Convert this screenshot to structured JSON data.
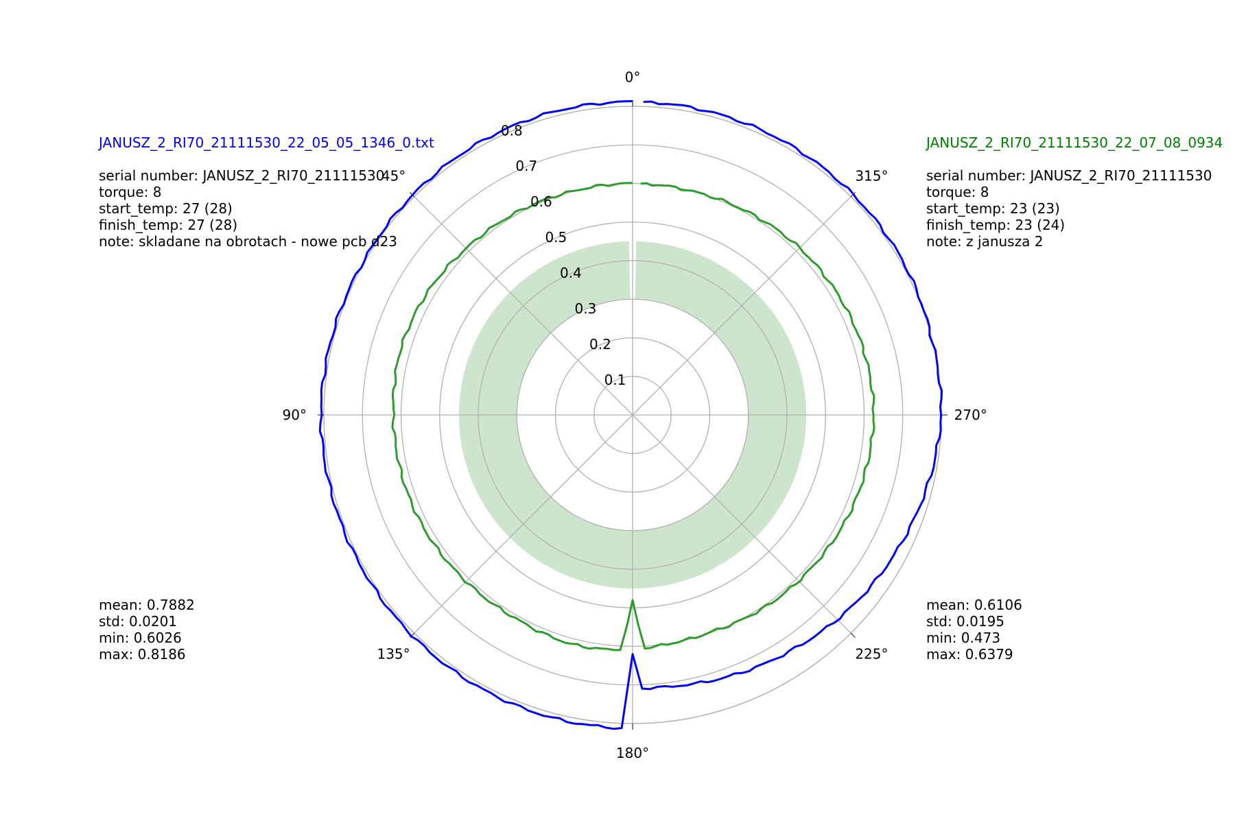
{
  "chart_data": {
    "type": "polar-line",
    "theta_direction": "counterclockwise",
    "theta_zero": "top",
    "theta_ticks": [
      "0°",
      "45°",
      "90°",
      "135°",
      "180°",
      "225°",
      "270°",
      "315°"
    ],
    "r_ticks": [
      "0.1",
      "0.2",
      "0.3",
      "0.4",
      "0.5",
      "0.6",
      "0.7",
      "0.8"
    ],
    "rlim": [
      0,
      0.8
    ],
    "grid": true,
    "band": {
      "r_min": 0.3,
      "r_max": 0.45,
      "color": "#cde5cd",
      "note": "shaded tolerance annulus"
    },
    "series": [
      {
        "name": "JANUSZ_2_RI70_21111530_22_05_05_1346_0.txt",
        "color": "#0000ff",
        "base_radius": 0.785,
        "theta_deg_start_gap": [
          178,
          182
        ],
        "points": [
          [
            0,
            0.812
          ],
          [
            15,
            0.812
          ],
          [
            30,
            0.81
          ],
          [
            45,
            0.806
          ],
          [
            60,
            0.803
          ],
          [
            75,
            0.805
          ],
          [
            90,
            0.808
          ],
          [
            105,
            0.806
          ],
          [
            120,
            0.806
          ],
          [
            135,
            0.808
          ],
          [
            150,
            0.81
          ],
          [
            165,
            0.812
          ],
          [
            178,
            0.812
          ],
          [
            180,
            0.62
          ],
          [
            182,
            0.708
          ],
          [
            190,
            0.712
          ],
          [
            200,
            0.722
          ],
          [
            215,
            0.737
          ],
          [
            230,
            0.756
          ],
          [
            245,
            0.772
          ],
          [
            260,
            0.79
          ],
          [
            270,
            0.8
          ],
          [
            285,
            0.8
          ],
          [
            300,
            0.806
          ],
          [
            315,
            0.808
          ],
          [
            330,
            0.81
          ],
          [
            345,
            0.811
          ],
          [
            358,
            0.812
          ]
        ]
      },
      {
        "name": "JANUSZ_2_RI70_21111530_22_07_08_0934",
        "color": "#2e9b2e",
        "points": [
          [
            0,
            0.6
          ],
          [
            15,
            0.6
          ],
          [
            30,
            0.605
          ],
          [
            45,
            0.61
          ],
          [
            60,
            0.62
          ],
          [
            75,
            0.625
          ],
          [
            90,
            0.62
          ],
          [
            105,
            0.618
          ],
          [
            120,
            0.615
          ],
          [
            135,
            0.61
          ],
          [
            150,
            0.608
          ],
          [
            165,
            0.615
          ],
          [
            177,
            0.61
          ],
          [
            180,
            0.48
          ],
          [
            183,
            0.605
          ],
          [
            190,
            0.6
          ],
          [
            200,
            0.598
          ],
          [
            215,
            0.605
          ],
          [
            230,
            0.61
          ],
          [
            245,
            0.617
          ],
          [
            260,
            0.622
          ],
          [
            270,
            0.625
          ],
          [
            285,
            0.622
          ],
          [
            300,
            0.617
          ],
          [
            315,
            0.612
          ],
          [
            330,
            0.605
          ],
          [
            345,
            0.6
          ],
          [
            358,
            0.6
          ]
        ]
      }
    ]
  },
  "left_panel": {
    "filename": "JANUSZ_2_RI70_21111530_22_05_05_1346_0.txt",
    "filename_color": "#0000ff",
    "serial": "serial number: JANUSZ_2_RI70_21111530",
    "torque": "torque: 8",
    "start_temp": "start_temp: 27 (28)",
    "finish_temp": "finish_temp: 27 (28)",
    "note": "note: skladane na obrotach - nowe pcb d23",
    "stats": {
      "mean": "mean: 0.7882",
      "std": "std: 0.0201",
      "min": "min: 0.6026",
      "max": "max: 0.8186"
    }
  },
  "right_panel": {
    "filename": "JANUSZ_2_RI70_21111530_22_07_08_0934",
    "filename_color": "#008000",
    "serial": "serial number: JANUSZ_2_RI70_21111530",
    "torque": "torque: 8",
    "start_temp": "start_temp: 23 (23)",
    "finish_temp": "finish_temp: 23 (24)",
    "note": "note: z janusza 2",
    "stats": {
      "mean": "mean: 0.6106",
      "std": "std: 0.0195",
      "min": "min: 0.473",
      "max": "max: 0.6379"
    }
  }
}
